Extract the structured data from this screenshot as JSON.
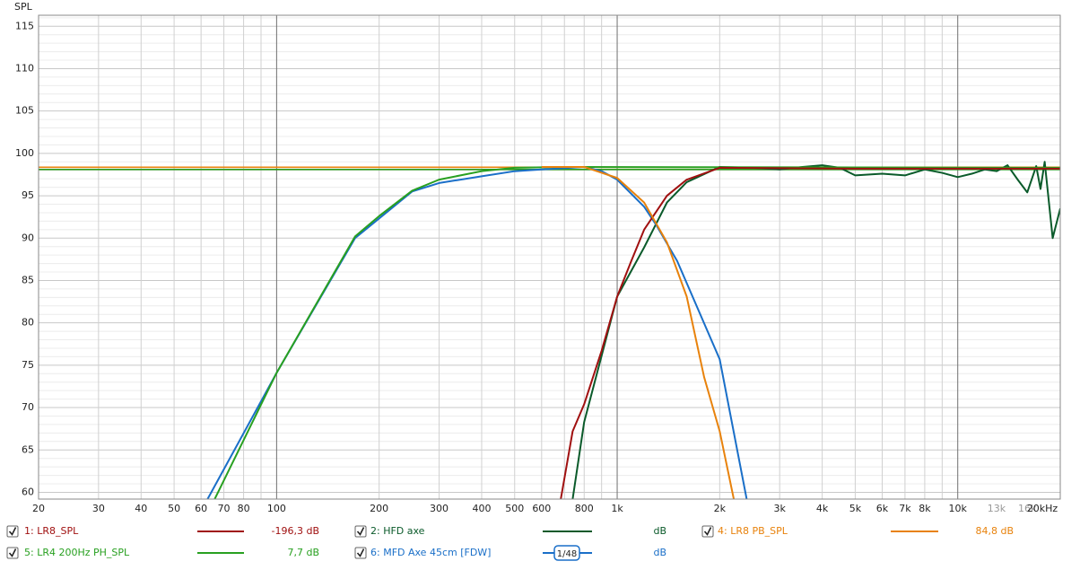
{
  "chart_data": {
    "type": "line",
    "y_label": "SPL",
    "xscale": "log",
    "xlim": [
      20,
      20000
    ],
    "ylim": [
      59.2,
      116.3
    ],
    "xticks": [
      20,
      30,
      40,
      50,
      60,
      70,
      80,
      100,
      200,
      300,
      400,
      500,
      600,
      800,
      {
        "value": 1000,
        "label": "1k"
      },
      {
        "value": 2000,
        "label": "2k"
      },
      {
        "value": 3000,
        "label": "3k"
      },
      {
        "value": 4000,
        "label": "4k"
      },
      {
        "value": 5000,
        "label": "5k"
      },
      {
        "value": 6000,
        "label": "6k"
      },
      {
        "value": 7000,
        "label": "7k"
      },
      {
        "value": 8000,
        "label": "8k"
      },
      {
        "value": 10000,
        "label": "10k"
      },
      {
        "value": 13000,
        "label": "13k"
      },
      {
        "value": 16000,
        "label": "16k"
      },
      {
        "value": 20000,
        "label": "20kHz"
      }
    ],
    "yticks": [
      60,
      65,
      70,
      75,
      80,
      85,
      90,
      95,
      100,
      105,
      110,
      115
    ],
    "xgrid": [
      20,
      30,
      40,
      50,
      60,
      70,
      80,
      90,
      100,
      200,
      300,
      400,
      500,
      600,
      700,
      800,
      900,
      1000,
      2000,
      3000,
      4000,
      5000,
      6000,
      7000,
      8000,
      9000,
      10000,
      20000
    ],
    "ygrid": [
      60,
      61,
      62,
      63,
      64,
      65,
      66,
      67,
      68,
      69,
      70,
      71,
      72,
      73,
      74,
      75,
      76,
      77,
      78,
      79,
      80,
      81,
      82,
      83,
      84,
      85,
      86,
      87,
      88,
      89,
      90,
      91,
      92,
      93,
      94,
      95,
      96,
      97,
      98,
      99,
      100,
      101,
      102,
      103,
      104,
      105,
      106,
      107,
      108,
      109,
      110,
      111,
      112,
      113,
      114,
      115,
      116
    ],
    "grid": true,
    "hlines": [
      {
        "value": 98.36,
        "color": "#e8820c"
      },
      {
        "value": 98.1,
        "color": "#2a9a1a"
      }
    ],
    "smoothing": "1/48",
    "series": [
      {
        "name": "1: LR8_SPL",
        "color": "#a01010",
        "readout": "-196,3 dB",
        "x": [
          683,
          740,
          800,
          900,
          1000,
          1100,
          1200,
          1400,
          1600,
          2000,
          5000,
          20000
        ],
        "values": [
          59.2,
          67.2,
          70.4,
          76.7,
          83.1,
          87.3,
          91.0,
          95.0,
          96.9,
          98.3,
          98.2,
          98.2
        ]
      },
      {
        "name": "2: HFD axe",
        "color": "#0a5a2a",
        "readout": "dB",
        "x": [
          740,
          800,
          1000,
          1200,
          1400,
          1600,
          2000,
          2500,
          3000,
          3500,
          4000,
          4500,
          5000,
          6000,
          7000,
          8000,
          9000,
          10000,
          11000,
          12000,
          13000,
          14000,
          15000,
          16000,
          17000,
          17500,
          18000,
          19000,
          20000
        ],
        "values": [
          59.2,
          68.3,
          83.1,
          88.9,
          94.2,
          96.6,
          98.4,
          98.3,
          98.1,
          98.4,
          98.6,
          98.3,
          97.4,
          97.6,
          97.4,
          98.1,
          97.7,
          97.2,
          97.6,
          98.1,
          97.9,
          98.6,
          96.9,
          95.4,
          98.5,
          95.8,
          99.0,
          90.0,
          93.5
        ]
      },
      {
        "name": "4: LR8 PB_SPL",
        "color": "#e8820c",
        "readout": "84,8 dB",
        "x": [
          600,
          800,
          1000,
          1200,
          1400,
          1600,
          1800,
          2000,
          2200
        ],
        "values": [
          98.4,
          98.4,
          97.1,
          94.2,
          89.5,
          83.1,
          73.6,
          67.2,
          59.2
        ]
      },
      {
        "name": "5: LR4 200Hz PH_SPL",
        "color": "#28a020",
        "readout": "7,7 dB",
        "x": [
          65.8,
          100,
          170,
          200,
          250,
          300,
          400,
          500,
          700,
          20000
        ],
        "values": [
          59.2,
          74.1,
          90.2,
          92.6,
          95.6,
          96.9,
          97.9,
          98.3,
          98.4,
          98.3
        ]
      },
      {
        "name": "6: MFD Axe 45cm [FDW]",
        "color": "#1a6fc8",
        "readout": "dB",
        "x": [
          62.7,
          100,
          170,
          250,
          300,
          400,
          500,
          600,
          800,
          900,
          1000,
          1200,
          1300,
          1500,
          2000,
          2400
        ],
        "values": [
          59.2,
          74.1,
          90.0,
          95.5,
          96.5,
          97.3,
          97.9,
          98.1,
          98.4,
          97.9,
          96.9,
          93.7,
          91.6,
          87.3,
          75.7,
          59.2
        ]
      }
    ]
  }
}
